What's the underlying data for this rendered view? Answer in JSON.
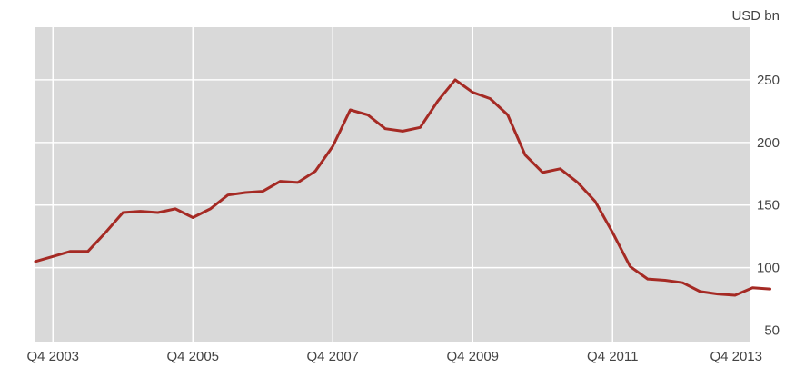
{
  "chart_data": {
    "type": "line",
    "unit_label": "USD bn",
    "x": [
      "Q3 2003",
      "Q4 2003",
      "Q1 2004",
      "Q2 2004",
      "Q3 2004",
      "Q4 2004",
      "Q1 2005",
      "Q2 2005",
      "Q3 2005",
      "Q4 2005",
      "Q1 2006",
      "Q2 2006",
      "Q3 2006",
      "Q4 2006",
      "Q1 2007",
      "Q2 2007",
      "Q3 2007",
      "Q4 2007",
      "Q1 2008",
      "Q2 2008",
      "Q3 2008",
      "Q4 2008",
      "Q1 2009",
      "Q2 2009",
      "Q3 2009",
      "Q4 2009",
      "Q1 2010",
      "Q2 2010",
      "Q3 2010",
      "Q4 2010",
      "Q1 2011",
      "Q2 2011",
      "Q3 2011",
      "Q4 2011",
      "Q1 2012",
      "Q2 2012",
      "Q3 2012",
      "Q4 2012",
      "Q1 2013",
      "Q2 2013",
      "Q3 2013",
      "Q4 2013",
      "Q1 2014"
    ],
    "series": [
      {
        "color": "#a52a24",
        "values": [
          105,
          109,
          113,
          113,
          128,
          144,
          145,
          144,
          147,
          140,
          147,
          158,
          160,
          161,
          169,
          168,
          177,
          197,
          226,
          222,
          211,
          209,
          212,
          233,
          250,
          240,
          235,
          222,
          190,
          176,
          179,
          168,
          153,
          128,
          101,
          91,
          90,
          88,
          81,
          79,
          78,
          84,
          83
        ]
      }
    ],
    "x_ticks": [
      "Q4 2003",
      "Q4 2005",
      "Q4 2007",
      "Q4 2009",
      "Q4 2011",
      "Q4 2013"
    ],
    "y_ticks": [
      50,
      100,
      150,
      200,
      250
    ],
    "ylim": [
      41,
      292
    ],
    "grid": true,
    "y_axis_side": "right",
    "background": "#d9d9d9",
    "gridline_color": "#ffffff"
  }
}
